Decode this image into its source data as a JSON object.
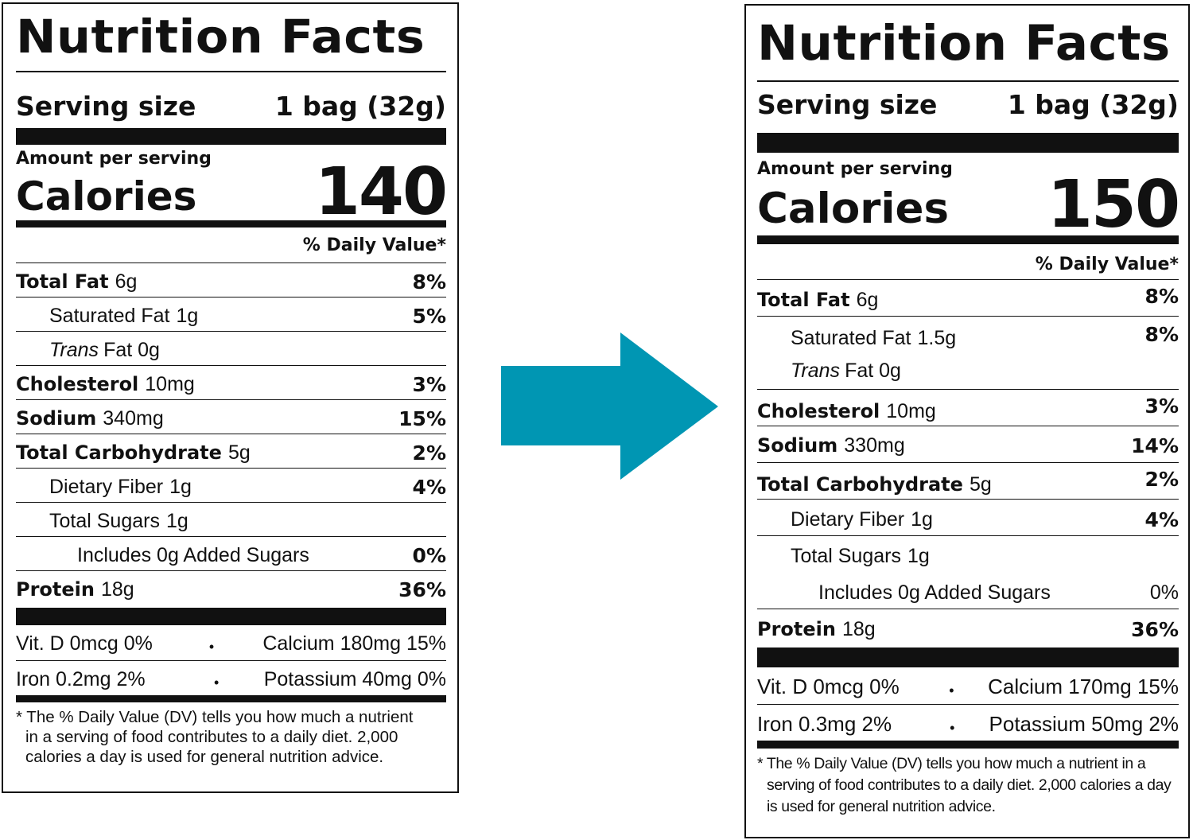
{
  "arrow": {
    "color": "#0096b3"
  },
  "labels": [
    {
      "title": "Nutrition Facts",
      "serving_label": "Serving size",
      "serving_value": "1 bag (32g)",
      "amount_per_serving": "Amount per serving",
      "calories_label": "Calories",
      "calories_value": "140",
      "dv_header": "% Daily Value*",
      "nutrients": [
        {
          "name": "Total Fat",
          "amount": "6g",
          "dv": "8%"
        },
        {
          "name": "Saturated Fat",
          "amount": "1g",
          "dv": "5%"
        },
        {
          "name": "Trans",
          "amount": "Fat 0g",
          "dv": ""
        },
        {
          "name": "Cholesterol",
          "amount": "10mg",
          "dv": "3%"
        },
        {
          "name": "Sodium",
          "amount": "340mg",
          "dv": "15%"
        },
        {
          "name": "Total Carbohydrate",
          "amount": "5g",
          "dv": "2%"
        },
        {
          "name": "Dietary Fiber",
          "amount": "1g",
          "dv": "4%"
        },
        {
          "name": "Total Sugars",
          "amount": "1g",
          "dv": ""
        },
        {
          "name": "Includes 0g Added Sugars",
          "amount": "",
          "dv": "0%"
        },
        {
          "name": "Protein",
          "amount": "18g",
          "dv": "36%"
        }
      ],
      "vitamins": [
        {
          "left": "Vit. D 0mcg 0%",
          "right": "Calcium 180mg 15%"
        },
        {
          "left": "Iron 0.2mg 2%",
          "right": "Potassium 40mg 0%"
        }
      ],
      "bullet": "•",
      "footnote": [
        "* The % Daily Value (DV) tells you how much a nutrient",
        "in a serving of food contributes to a daily diet. 2,000",
        "calories a day is used for general nutrition advice."
      ]
    },
    {
      "title": "Nutrition Facts",
      "serving_label": "Serving size",
      "serving_value": "1 bag (32g)",
      "amount_per_serving": "Amount per serving",
      "calories_label": "Calories",
      "calories_value": "150",
      "dv_header": "% Daily Value*",
      "nutrients": [
        {
          "name": "Total Fat",
          "amount": "6g",
          "dv": "8%"
        },
        {
          "name": "Saturated Fat",
          "amount": "1.5g",
          "dv": "8%"
        },
        {
          "name": "Trans",
          "amount": "Fat 0g",
          "dv": ""
        },
        {
          "name": "Cholesterol",
          "amount": "10mg",
          "dv": "3%"
        },
        {
          "name": "Sodium",
          "amount": "330mg",
          "dv": "14%"
        },
        {
          "name": "Total Carbohydrate",
          "amount": "5g",
          "dv": "2%"
        },
        {
          "name": "Dietary Fiber",
          "amount": "1g",
          "dv": "4%"
        },
        {
          "name": "Total Sugars",
          "amount": "1g",
          "dv": ""
        },
        {
          "name": "Includes 0g Added Sugars",
          "amount": "",
          "dv": "0%"
        },
        {
          "name": "Protein",
          "amount": "18g",
          "dv": "36%"
        }
      ],
      "vitamins": [
        {
          "left": "Vit. D 0mcg 0%",
          "right": "Calcium 170mg 15%"
        },
        {
          "left": "Iron 0.3mg 2%",
          "right": "Potassium 50mg 2%"
        }
      ],
      "bullet": "•",
      "footnote": [
        "* The % Daily Value (DV) tells you how much a nutrient in a",
        "serving of food contributes to a daily diet. 2,000 calories a day",
        "is used for general nutrition advice."
      ]
    }
  ]
}
